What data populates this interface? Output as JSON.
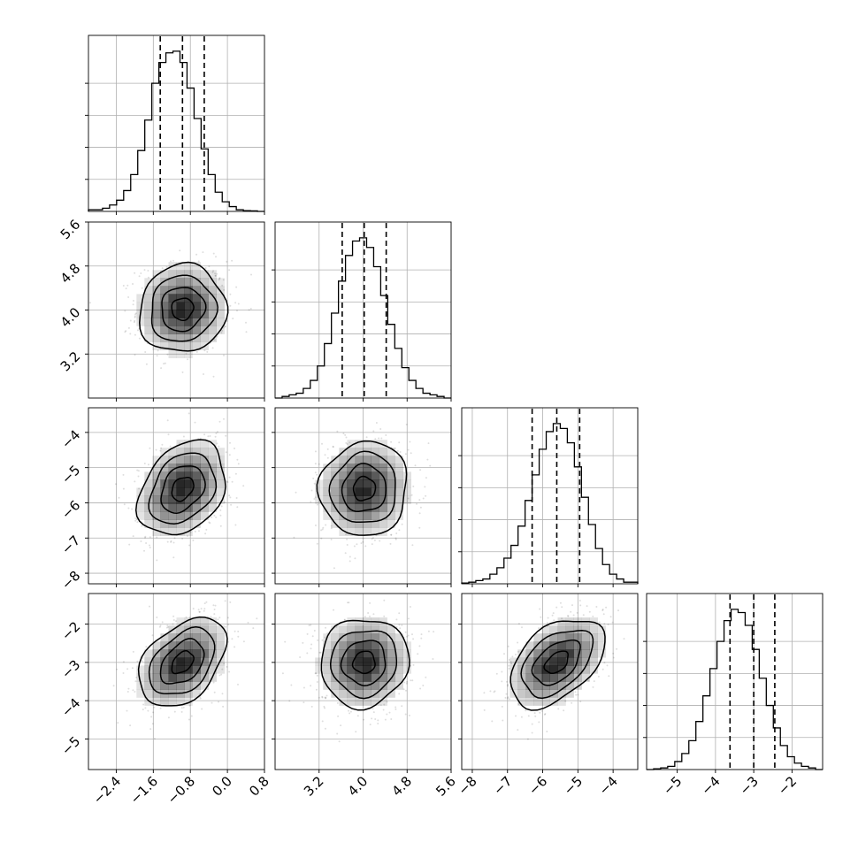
{
  "chart_data": {
    "type": "corner",
    "grid": true,
    "quantiles_shown": [
      0.16,
      0.5,
      0.84
    ],
    "contour_color": "#000000",
    "density_color": "#000000",
    "parameters": [
      {
        "index": 0,
        "range": [
          -3.0,
          0.8
        ],
        "ticks": [
          -2.4,
          -1.6,
          -0.8,
          0.0,
          0.8
        ],
        "tick_labels": [
          "−2.4",
          "−1.6",
          "−0.8",
          "0.0",
          "0.8"
        ],
        "histogram_ticks": [
          0.2,
          0.4,
          0.6,
          0.8
        ],
        "quantiles": [
          -1.45,
          -0.97,
          -0.5
        ],
        "histogram": [
          0.01,
          0.01,
          0.02,
          0.04,
          0.07,
          0.13,
          0.23,
          0.38,
          0.57,
          0.8,
          0.93,
          0.99,
          1.0,
          0.93,
          0.77,
          0.58,
          0.39,
          0.23,
          0.12,
          0.06,
          0.03,
          0.01,
          0.005,
          0.003,
          0.0
        ]
      },
      {
        "index": 1,
        "range": [
          2.4,
          5.6
        ],
        "ticks": [
          3.2,
          4.0,
          4.8,
          5.6
        ],
        "tick_labels": [
          "3.2",
          "4.0",
          "4.8",
          "5.6"
        ],
        "histogram_ticks": [
          0.2,
          0.4,
          0.6,
          0.8
        ],
        "quantiles": [
          3.62,
          4.02,
          4.42
        ],
        "histogram": [
          0.0,
          0.01,
          0.02,
          0.03,
          0.06,
          0.11,
          0.2,
          0.34,
          0.53,
          0.73,
          0.89,
          0.98,
          1.0,
          0.94,
          0.82,
          0.64,
          0.46,
          0.31,
          0.19,
          0.11,
          0.06,
          0.03,
          0.02,
          0.01,
          0.0
        ]
      },
      {
        "index": 2,
        "range": [
          -8.3,
          -3.3
        ],
        "ticks": [
          -8,
          -7,
          -6,
          -5,
          -4
        ],
        "tick_labels": [
          "−8",
          "−7",
          "−6",
          "−5",
          "−4"
        ],
        "histogram_ticks": [
          0.2,
          0.4,
          0.6,
          0.8
        ],
        "quantiles": [
          -6.3,
          -5.6,
          -4.95
        ],
        "histogram": [
          0.005,
          0.01,
          0.02,
          0.03,
          0.06,
          0.1,
          0.16,
          0.24,
          0.36,
          0.52,
          0.68,
          0.84,
          0.95,
          1.0,
          0.97,
          0.88,
          0.73,
          0.54,
          0.37,
          0.22,
          0.12,
          0.06,
          0.03,
          0.01,
          0.01
        ]
      },
      {
        "index": 3,
        "range": [
          -5.8,
          -1.2
        ],
        "ticks": [
          -5,
          -4,
          -3,
          -2
        ],
        "tick_labels": [
          "−5",
          "−4",
          "−3",
          "−2"
        ],
        "histogram_ticks": [
          0.2,
          0.4,
          0.6,
          0.8
        ],
        "quantiles": [
          -3.62,
          -3.0,
          -2.45
        ],
        "histogram": [
          0.0,
          0.005,
          0.01,
          0.02,
          0.05,
          0.1,
          0.18,
          0.3,
          0.46,
          0.63,
          0.8,
          0.93,
          1.0,
          0.98,
          0.9,
          0.75,
          0.57,
          0.4,
          0.26,
          0.15,
          0.08,
          0.04,
          0.02,
          0.01,
          0.0
        ]
      }
    ],
    "pairs": [
      {
        "row": 1,
        "col": 0,
        "mean": [
          -0.97,
          4.02
        ],
        "sd": [
          0.47,
          0.4
        ],
        "corr": 0.05
      },
      {
        "row": 2,
        "col": 0,
        "mean": [
          -0.97,
          -5.6
        ],
        "sd": [
          0.47,
          0.67
        ],
        "corr": 0.3
      },
      {
        "row": 2,
        "col": 1,
        "mean": [
          4.02,
          -5.6
        ],
        "sd": [
          0.4,
          0.67
        ],
        "corr": 0.05
      },
      {
        "row": 3,
        "col": 0,
        "mean": [
          -0.97,
          -3.0
        ],
        "sd": [
          0.47,
          0.58
        ],
        "corr": 0.4
      },
      {
        "row": 3,
        "col": 1,
        "mean": [
          4.02,
          -3.0
        ],
        "sd": [
          0.4,
          0.58
        ],
        "corr": 0.05
      },
      {
        "row": 3,
        "col": 2,
        "mean": [
          -5.6,
          -3.0
        ],
        "sd": [
          0.67,
          0.58
        ],
        "corr": 0.45
      }
    ],
    "contour_levels_sigma": [
      0.5,
      1.0,
      1.5,
      2.0
    ]
  }
}
